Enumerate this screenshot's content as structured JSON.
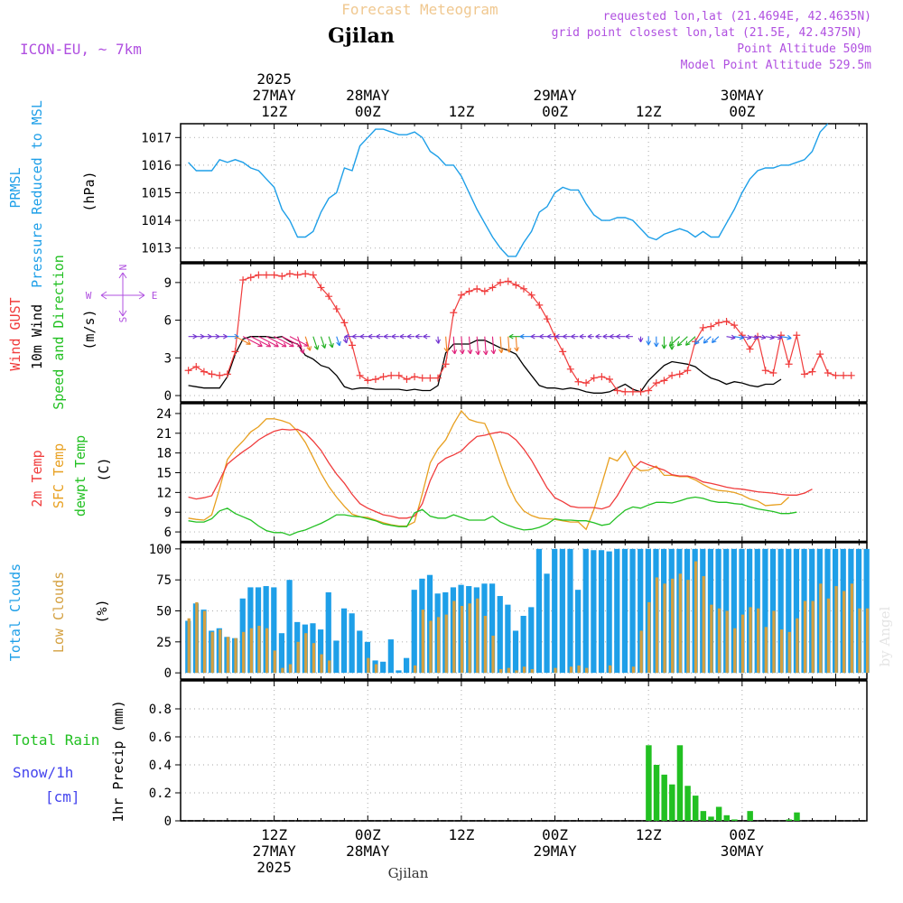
{
  "header": {
    "title": "Forecast Meteogram",
    "location": "Gjilan",
    "model": "ICON-EU, ~ 7km",
    "requested": "requested lon,lat (21.4694E, 42.4635N)",
    "grid_point": "grid point closest lon,lat (21.5E, 42.4375N)",
    "point_altitude": "Point Altitude 509m",
    "model_altitude": "Model Point Altitude 529.5m",
    "watermark": "by Angel",
    "footer_location": "Gjilan"
  },
  "colors": {
    "pressure": "#1e9fe8",
    "gust": "#f03c3c",
    "wind": "#000000",
    "temp2m": "#f03c3c",
    "sfc": "#e8a020",
    "dewpt": "#22c022",
    "total_clouds": "#1e9fe8",
    "low_clouds": "#d4a040",
    "rain": "#22c022",
    "snow": "#4444ee",
    "purple": "#b050e0",
    "title": "#f0c890"
  },
  "time_axis": {
    "top_labels": [
      {
        "lines": [
          "2025",
          "27MAY",
          "12Z"
        ],
        "hour": 12
      },
      {
        "lines": [
          "28MAY",
          "00Z"
        ],
        "hour": 24
      },
      {
        "lines": [
          "12Z"
        ],
        "hour": 36
      },
      {
        "lines": [
          "29MAY",
          "00Z"
        ],
        "hour": 48
      },
      {
        "lines": [
          "12Z"
        ],
        "hour": 60
      },
      {
        "lines": [
          "30MAY",
          "00Z"
        ],
        "hour": 72
      }
    ],
    "bottom_labels": [
      {
        "lines": [
          "12Z",
          "27MAY",
          "2025"
        ],
        "hour": 12
      },
      {
        "lines": [
          "00Z",
          "28MAY"
        ],
        "hour": 24
      },
      {
        "lines": [
          "12Z"
        ],
        "hour": 36
      },
      {
        "lines": [
          "00Z",
          "29MAY"
        ],
        "hour": 48
      },
      {
        "lines": [
          "12Z"
        ],
        "hour": 60
      },
      {
        "lines": [
          "00Z",
          "30MAY"
        ],
        "hour": 72
      }
    ]
  },
  "panels": {
    "pressure": {
      "labels": [
        "PRMSL",
        "Pressure Reduced to MSL"
      ],
      "unit": "(hPa)",
      "ticks": [
        "1013",
        "1014",
        "1015",
        "1016",
        "1017"
      ]
    },
    "wind": {
      "labels": [
        "Wind GUST",
        "10m Wind",
        "Speed and Direction"
      ],
      "unit": "(m/s)",
      "ticks": [
        "0",
        "3",
        "6",
        "9"
      ],
      "compass": {
        "n": "N",
        "s": "S",
        "w": "W",
        "e": "E"
      }
    },
    "temp": {
      "labels": [
        "2m Temp",
        "SFC Temp",
        "dewpt Temp"
      ],
      "unit": "(C)",
      "ticks": [
        "6",
        "9",
        "12",
        "15",
        "18",
        "21",
        "24"
      ]
    },
    "clouds": {
      "labels": [
        "Total Clouds",
        "Low Clouds"
      ],
      "unit": "(%)",
      "ticks": [
        "0",
        "25",
        "50",
        "75",
        "100"
      ]
    },
    "precip": {
      "labels": [
        "Total  Rain",
        "Snow/1h",
        "[cm]"
      ],
      "unit": "1hr Precip (mm)",
      "ticks": [
        "0",
        "0.2",
        "0.4",
        "0.6",
        "0.8"
      ]
    }
  },
  "chart_data": [
    {
      "type": "line",
      "panel": "pressure",
      "ylabel": "Pressure Reduced to MSL (hPa)",
      "ylim": [
        1012.5,
        1017.5
      ],
      "series": [
        {
          "name": "PRMSL",
          "hour_start": 1,
          "step": 1,
          "values": [
            1016.1,
            1015.8,
            1015.8,
            1015.8,
            1016.2,
            1016.1,
            1016.2,
            1016.1,
            1015.9,
            1015.8,
            1015.5,
            1015.2,
            1014.4,
            1014.0,
            1013.4,
            1013.4,
            1013.6,
            1014.3,
            1014.8,
            1015.0,
            1015.9,
            1015.8,
            1016.7,
            1017.0,
            1017.3,
            1017.3,
            1017.2,
            1017.1,
            1017.1,
            1017.2,
            1017.0,
            1016.5,
            1016.3,
            1016.0,
            1016.0,
            1015.6,
            1015.0,
            1014.4,
            1013.9,
            1013.4,
            1013.0,
            1012.7,
            1012.7,
            1013.2,
            1013.6,
            1014.3,
            1014.5,
            1015.0,
            1015.2,
            1015.1,
            1015.1,
            1014.6,
            1014.2,
            1014.0,
            1014.0,
            1014.1,
            1014.1,
            1014.0,
            1013.7,
            1013.4,
            1013.3,
            1013.5,
            1013.6,
            1013.7,
            1013.6,
            1013.4,
            1013.6,
            1013.4,
            1013.4,
            1013.9,
            1014.4,
            1015.0,
            1015.5,
            1015.8,
            1015.9,
            1015.9,
            1016.0,
            1016.0,
            1016.1,
            1016.2,
            1016.5,
            1017.2,
            1017.5
          ]
        }
      ]
    },
    {
      "type": "line",
      "panel": "wind",
      "ylabel": "m/s",
      "ylim": [
        -0.5,
        10.5
      ],
      "series": [
        {
          "name": "Wind GUST",
          "hour_start": 1,
          "step": 1,
          "values": [
            2.0,
            2.3,
            1.9,
            1.7,
            1.6,
            1.7,
            3.5,
            9.2,
            9.4,
            9.6,
            9.6,
            9.6,
            9.5,
            9.7,
            9.6,
            9.7,
            9.6,
            8.6,
            7.9,
            6.9,
            5.8,
            4.0,
            1.6,
            1.2,
            1.3,
            1.5,
            1.6,
            1.6,
            1.3,
            1.5,
            1.4,
            1.4,
            1.4,
            2.5,
            6.6,
            8.0,
            8.3,
            8.5,
            8.3,
            8.6,
            9.0,
            9.1,
            8.8,
            8.5,
            8.0,
            7.2,
            6.1,
            4.7,
            3.5,
            2.1,
            1.1,
            1.0,
            1.4,
            1.5,
            1.3,
            0.4,
            0.3,
            0.3,
            0.3,
            0.4,
            1.0,
            1.2,
            1.6,
            1.7,
            2.0,
            4.3,
            5.4,
            5.5,
            5.8,
            5.9,
            5.6,
            4.8,
            3.7,
            4.7,
            2.0,
            1.8,
            4.8,
            2.5,
            4.8,
            1.7,
            1.9,
            3.3,
            1.8,
            1.6,
            1.6,
            1.6
          ]
        },
        {
          "name": "10m Wind",
          "hour_start": 1,
          "step": 1,
          "values": [
            0.8,
            0.7,
            0.6,
            0.6,
            0.6,
            1.5,
            3.3,
            4.5,
            4.7,
            4.7,
            4.7,
            4.6,
            4.7,
            4.3,
            4.1,
            3.2,
            2.9,
            2.4,
            2.2,
            1.6,
            0.7,
            0.5,
            0.6,
            0.6,
            0.5,
            0.5,
            0.5,
            0.5,
            0.4,
            0.5,
            0.4,
            0.4,
            0.8,
            3.4,
            4.1,
            4.1,
            4.1,
            4.4,
            4.4,
            4.1,
            3.8,
            3.6,
            3.3,
            2.4,
            1.6,
            0.8,
            0.6,
            0.6,
            0.5,
            0.6,
            0.5,
            0.3,
            0.2,
            0.2,
            0.3,
            0.6,
            0.9,
            0.5,
            0.3,
            1.2,
            1.8,
            2.4,
            2.7,
            2.6,
            2.5,
            2.3,
            1.8,
            1.4,
            1.2,
            0.9,
            1.1,
            1.0,
            0.8,
            0.7,
            0.9,
            0.9,
            1.3
          ]
        }
      ]
    },
    {
      "type": "line",
      "panel": "temp",
      "ylabel": "C",
      "ylim": [
        4.5,
        25.5
      ],
      "series": [
        {
          "name": "2m Temp",
          "hour_start": 1,
          "step": 1,
          "values": [
            11.3,
            11.0,
            11.2,
            11.5,
            13.8,
            16.3,
            17.3,
            18.2,
            19.0,
            20.0,
            20.7,
            21.3,
            21.6,
            21.5,
            21.6,
            21.0,
            19.8,
            18.4,
            16.5,
            14.8,
            13.4,
            11.7,
            10.3,
            9.6,
            9.1,
            8.6,
            8.4,
            8.1,
            8.1,
            8.4,
            10.3,
            13.8,
            16.3,
            17.2,
            17.7,
            18.3,
            19.5,
            20.5,
            20.7,
            21.0,
            21.2,
            20.9,
            20.0,
            18.6,
            16.9,
            14.8,
            12.7,
            11.2,
            10.6,
            9.9,
            9.7,
            9.7,
            9.7,
            9.5,
            9.9,
            11.5,
            13.6,
            15.6,
            16.7,
            16.2,
            15.8,
            15.4,
            14.7,
            14.5,
            14.5,
            14.2,
            13.6,
            13.4,
            13.1,
            12.8,
            12.6,
            12.5,
            12.3,
            12.1,
            12.0,
            11.9,
            11.7,
            11.6,
            11.6,
            11.9,
            12.5
          ]
        },
        {
          "name": "SFC Temp",
          "hour_start": 1,
          "step": 1,
          "values": [
            8.1,
            7.9,
            7.8,
            8.6,
            12.6,
            17.0,
            18.6,
            19.8,
            21.2,
            22.0,
            23.2,
            23.2,
            22.9,
            22.5,
            21.3,
            19.6,
            17.3,
            14.9,
            12.9,
            11.3,
            9.9,
            8.7,
            8.3,
            8.2,
            7.8,
            7.4,
            7.1,
            6.9,
            6.9,
            7.5,
            11.8,
            16.5,
            18.6,
            20.0,
            22.4,
            24.4,
            23.1,
            22.7,
            22.5,
            19.9,
            16.4,
            13.2,
            10.7,
            9.2,
            8.5,
            8.1,
            8.0,
            7.9,
            7.7,
            7.5,
            7.5,
            6.4,
            9.4,
            13.3,
            17.3,
            16.8,
            18.3,
            16.1,
            15.3,
            15.4,
            16.0,
            14.6,
            14.6,
            14.4,
            14.4,
            13.9,
            13.2,
            12.6,
            12.3,
            12.2,
            12.0,
            11.6,
            11.0,
            10.7,
            10.0,
            10.1,
            10.2,
            11.3
          ]
        },
        {
          "name": "dewpt Temp",
          "hour_start": 1,
          "step": 1,
          "values": [
            7.7,
            7.5,
            7.5,
            8.0,
            9.2,
            9.6,
            8.8,
            8.3,
            7.8,
            6.9,
            6.2,
            5.9,
            5.9,
            5.5,
            6.0,
            6.3,
            6.8,
            7.3,
            7.9,
            8.6,
            8.6,
            8.4,
            8.3,
            8.0,
            7.7,
            7.2,
            7.0,
            6.8,
            6.8,
            8.9,
            9.4,
            8.4,
            8.1,
            8.1,
            8.6,
            8.2,
            7.8,
            7.8,
            7.8,
            8.4,
            7.5,
            7.0,
            6.6,
            6.3,
            6.4,
            6.7,
            7.2,
            8.0,
            7.8,
            7.8,
            7.7,
            7.7,
            7.4,
            7.0,
            7.2,
            8.3,
            9.3,
            9.8,
            9.6,
            10.1,
            10.5,
            10.5,
            10.4,
            10.7,
            11.1,
            11.3,
            11.1,
            10.7,
            10.5,
            10.5,
            10.3,
            10.2,
            9.8,
            9.5,
            9.3,
            9.1,
            8.8,
            8.8,
            9.0
          ]
        }
      ]
    },
    {
      "type": "bar",
      "panel": "clouds",
      "ylabel": "%",
      "ylim": [
        -5,
        105
      ],
      "series": [
        {
          "name": "Total Clouds",
          "hour_start": 1,
          "step": 1,
          "values": [
            42,
            56,
            51,
            34,
            36,
            29,
            28,
            60,
            69,
            69,
            70,
            69,
            32,
            75,
            41,
            39,
            40,
            35,
            65,
            26,
            52,
            48,
            34,
            25,
            10,
            9,
            27,
            2,
            12,
            67,
            76,
            79,
            64,
            65,
            69,
            71,
            70,
            69,
            72,
            72,
            62,
            55,
            34,
            46,
            53,
            100,
            80,
            100,
            100,
            100,
            67,
            100,
            99,
            99,
            98,
            100,
            100,
            100,
            100,
            100,
            100,
            100,
            100,
            100,
            100,
            100,
            100,
            100,
            100,
            100,
            100,
            100,
            100,
            100,
            100,
            100,
            100,
            100,
            100,
            100,
            100,
            100,
            100,
            100,
            100,
            100,
            100,
            100
          ]
        },
        {
          "name": "Low Clouds",
          "hour_start": 1,
          "step": 1,
          "values": [
            44,
            57,
            50,
            33,
            35,
            29,
            28,
            33,
            36,
            38,
            36,
            18,
            4,
            7,
            25,
            32,
            24,
            15,
            10,
            0,
            0,
            0,
            0,
            12,
            7,
            0,
            0,
            0,
            0,
            6,
            51,
            42,
            45,
            47,
            58,
            54,
            56,
            60,
            46,
            30,
            3,
            4,
            2,
            5,
            3,
            0,
            0,
            4,
            0,
            5,
            6,
            4,
            0,
            0,
            6,
            0,
            0,
            5,
            34,
            57,
            77,
            72,
            76,
            80,
            75,
            90,
            78,
            55,
            52,
            50,
            36,
            47,
            53,
            52,
            37,
            50,
            35,
            33,
            44,
            58,
            58,
            72,
            60,
            70,
            66,
            72,
            52,
            52
          ]
        }
      ]
    },
    {
      "type": "bar",
      "panel": "precip",
      "ylabel": "1hr Precip (mm)",
      "ylim": [
        0,
        1.0
      ],
      "series": [
        {
          "name": "Total Rain",
          "hour_start": 60,
          "step": 1,
          "values": [
            0.54,
            0.4,
            0.33,
            0.26,
            0.54,
            0.25,
            0.18,
            0.07,
            0.03,
            0.1,
            0.04,
            0.01,
            0.0,
            0.07,
            0.0,
            0.0,
            0.0,
            0.0,
            0.01,
            0.06
          ]
        }
      ]
    }
  ]
}
